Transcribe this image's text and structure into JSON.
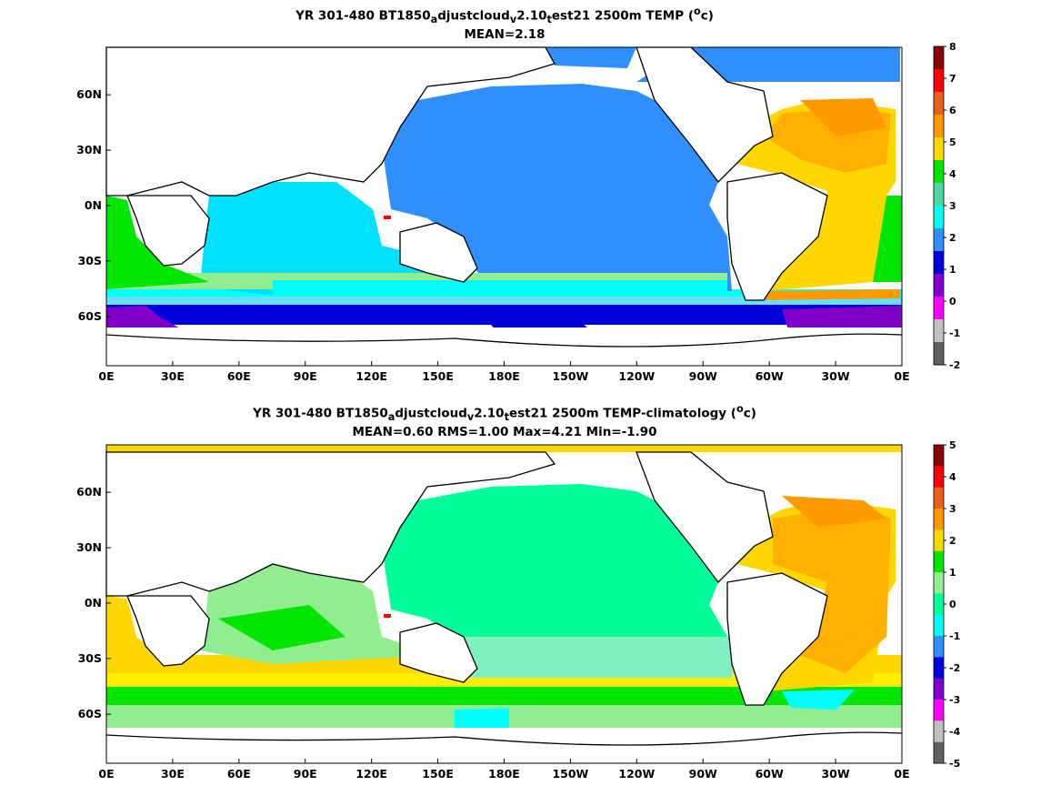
{
  "panels": [
    {
      "title_prefix": "YR 301-480 BT1850",
      "title_sub1": "a",
      "title_mid1": "djustcloud",
      "title_sub2": "v",
      "title_mid2": "2.10",
      "title_sub3": "t",
      "title_suffix": "est21 2500m TEMP (",
      "title_sup": "o",
      "title_end": "c)",
      "stats": "MEAN=2.18",
      "colorbar_labels": [
        "8",
        "7",
        "6",
        "5",
        "4",
        "3",
        "2",
        "1",
        "0",
        "-1",
        "-2"
      ],
      "colorbar_colors": [
        "#8b0000",
        "#ff0000",
        "#e8601c",
        "#ff9900",
        "#ffd700",
        "#00e600",
        "#4cd9a6",
        "#00ffff",
        "#2f8fff",
        "#0000dd",
        "#8000c8",
        "#ff00ff",
        "#c0c0c0",
        "#606060"
      ]
    },
    {
      "title_prefix": "YR 301-480 BT1850",
      "title_sub1": "a",
      "title_mid1": "djustcloud",
      "title_sub2": "v",
      "title_mid2": "2.10",
      "title_sub3": "t",
      "title_suffix": "est21 2500m TEMP-climatology (",
      "title_sup": "o",
      "title_end": "c)",
      "stats": "MEAN=0.60   RMS=1.00   Max=4.21   Min=-1.90",
      "colorbar_labels": [
        "5",
        "4",
        "3",
        "2",
        "1",
        "0",
        "-1",
        "-2",
        "-3",
        "-4",
        "-5"
      ],
      "colorbar_colors": [
        "#8b0000",
        "#ff0000",
        "#e8601c",
        "#ff9900",
        "#ffd700",
        "#00e600",
        "#90ee90",
        "#00ff99",
        "#00ffff",
        "#2f8fff",
        "#0000dd",
        "#8000c8",
        "#ff00ff",
        "#c0c0c0",
        "#606060"
      ]
    }
  ],
  "axes": {
    "lon_labels": [
      "0E",
      "30E",
      "60E",
      "90E",
      "120E",
      "150E",
      "180E",
      "150W",
      "120W",
      "90W",
      "60W",
      "30W",
      "0E"
    ],
    "lat_labels": [
      "60N",
      "30N",
      "0N",
      "30S",
      "60S"
    ]
  }
}
